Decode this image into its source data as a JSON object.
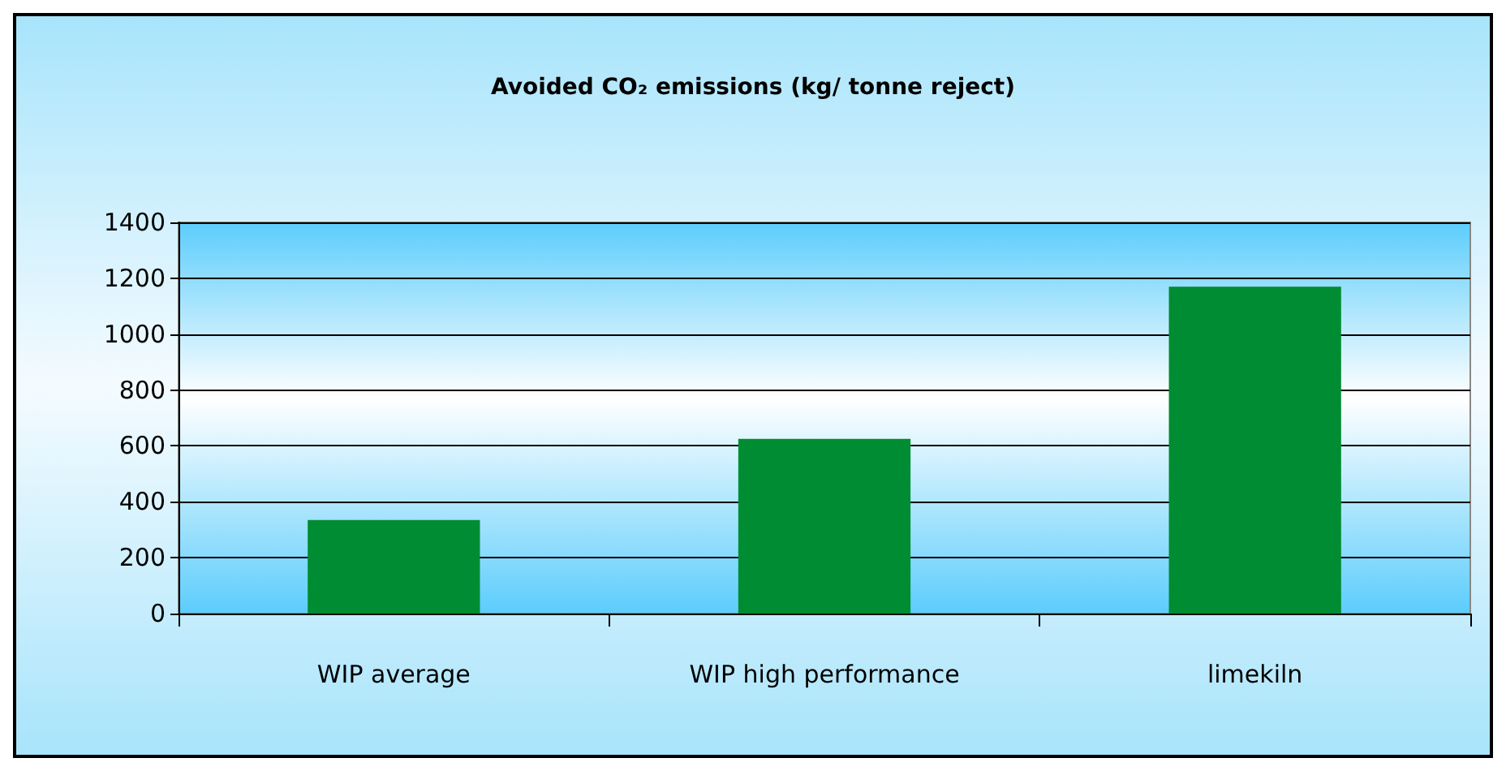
{
  "chart_data": {
    "type": "bar",
    "title": "Avoided CO₂ emissions (kg/ tonne reject)",
    "categories": [
      "WIP average",
      "WIP high performance",
      "limekiln"
    ],
    "values": [
      335,
      625,
      1170
    ],
    "color": "#008c32",
    "ylim": [
      0,
      1400
    ],
    "yticks": [
      0,
      200,
      400,
      600,
      800,
      1000,
      1200,
      1400
    ],
    "grid": "y"
  }
}
